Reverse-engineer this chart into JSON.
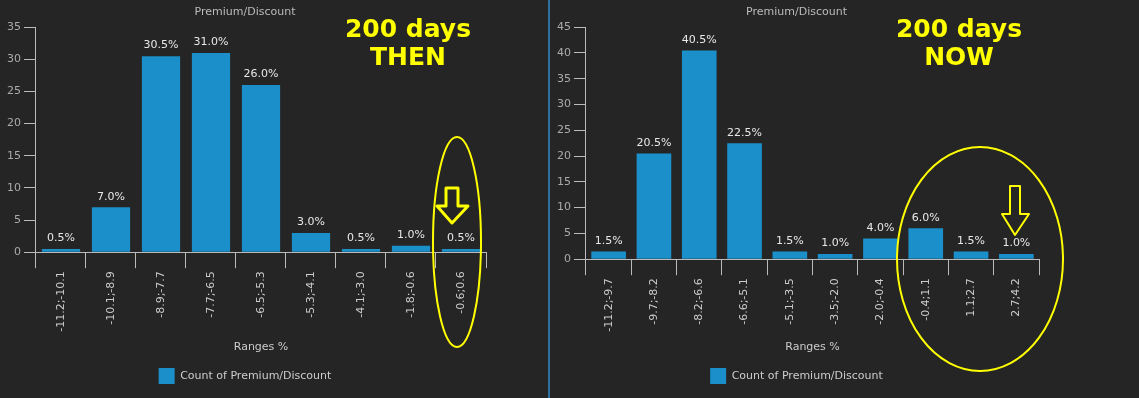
{
  "chart_data": [
    {
      "type": "bar",
      "title": "Premium/Discount",
      "xlabel": "Ranges %",
      "annotations": [
        "200 days\nTHEN"
      ],
      "categories": [
        "-11.2;-10.1",
        "-10.1;-8.9",
        "-8.9;-7.7",
        "-7.7;-6.5",
        "-6.5;-5.3",
        "-5.3;-4.1",
        "-4.1;-3.0",
        "-1.8;-0.6",
        "-0.6;0.6"
      ],
      "series": [
        {
          "name": "Count of Premium/Discount",
          "color": "#1a8fc9",
          "values": [
            0.5,
            7,
            30.5,
            31,
            26,
            3,
            0.5,
            1,
            0.5
          ],
          "value_labels": [
            "0.5%",
            "7.0%",
            "30.5%",
            "31.0%",
            "26.0%",
            "3.0%",
            "0.5%",
            "1.0%",
            "0.5%"
          ]
        }
      ],
      "ylim": [
        0,
        35
      ],
      "yticks": [
        0,
        5,
        10,
        15,
        20,
        25,
        30,
        35
      ],
      "grid": false,
      "legend": "bottom"
    },
    {
      "type": "bar",
      "title": "Premium/Discount",
      "xlabel": "Ranges %",
      "annotations": [
        "200 days\nNOW"
      ],
      "categories": [
        "-11.2;-9.7",
        "-9.7;-8.2",
        "-8.2;-6.6",
        "-6.6;-5.1",
        "-5.1;-3.5",
        "-3.5;-2.0",
        "-2.0;-0.4",
        "-0.4;1.1",
        "1.1;2.7",
        "2.7;4.2"
      ],
      "series": [
        {
          "name": "Count of Premium/Discount",
          "color": "#1a8fc9",
          "values": [
            1.5,
            20.5,
            40.5,
            22.5,
            1.5,
            1,
            4,
            6,
            1.5,
            1
          ],
          "value_labels": [
            "1.5%",
            "20.5%",
            "40.5%",
            "22.5%",
            "1.5%",
            "1.0%",
            "4.0%",
            "6.0%",
            "1.5%",
            "1.0%"
          ]
        }
      ],
      "ylim": [
        0,
        45
      ],
      "yticks": [
        0,
        5,
        10,
        15,
        20,
        25,
        30,
        35,
        40,
        45
      ],
      "grid": false,
      "legend": "bottom"
    }
  ]
}
